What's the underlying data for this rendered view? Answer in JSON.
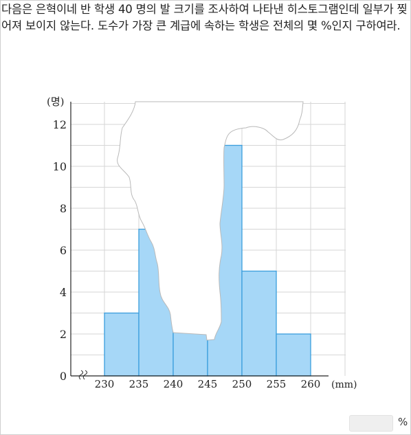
{
  "question": {
    "text": "다음은 은혁이네 반 학생 40 명의 발 크기를 조사하여 나타낸 히스토그램인데 일부가 찢어져 보이지 않는다. 도수가 가장 큰 계급에 속하는 학생은 전체의 몇 %인지 구하여라."
  },
  "chart_data": {
    "type": "bar",
    "title": "",
    "xlabel": "(mm)",
    "ylabel": "(명)",
    "x_ticks": [
      "230",
      "235",
      "240",
      "245",
      "250",
      "255",
      "260"
    ],
    "y_ticks": [
      "0",
      "2",
      "4",
      "6",
      "8",
      "10",
      "12"
    ],
    "ylim": [
      0,
      13
    ],
    "bins": [
      {
        "from": 230,
        "to": 235,
        "value": 3
      },
      {
        "from": 235,
        "to": 240,
        "value": 7
      },
      {
        "from": 240,
        "to": 245,
        "value": 2.3
      },
      {
        "from": 245,
        "to": 250,
        "value": 11
      },
      {
        "from": 250,
        "to": 255,
        "value": 5
      },
      {
        "from": 255,
        "to": 260,
        "value": 2
      }
    ],
    "grid": true,
    "axis_break": true,
    "bar_color": "#a6d7f7",
    "bar_edge_color": "#3a9ddc"
  },
  "answer": {
    "value": "",
    "unit": "%"
  }
}
